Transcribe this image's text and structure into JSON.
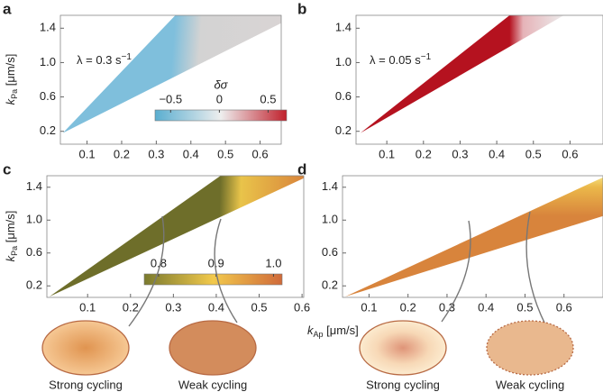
{
  "chart_data": [
    {
      "type": "area",
      "panel": "a",
      "region": {
        "x": [
          0.03,
          0.355,
          0.661,
          0.661
        ],
        "y": [
          0.18,
          1.55,
          1.55,
          1.46
        ]
      },
      "colors": [
        "#7fbfdc",
        "#d3d3d3",
        "#d9d4d4"
      ],
      "xlim": [
        0.023,
        0.661
      ],
      "ylim": [
        0.05,
        1.55
      ],
      "xticks": [
        0.1,
        0.2,
        0.3,
        0.4,
        0.5,
        0.6
      ],
      "yticks": [
        0.2,
        0.6,
        {
          "value": 1,
          "label": "1.0"
        },
        1.4
      ],
      "y_label": {
        "symbol": "k",
        "subscript": "Pa",
        "unit": " [μm/s]"
      },
      "annotation": {
        "text": "λ = 0.3 s",
        "superscript": "−1"
      },
      "colorbar": {
        "label": "δσ",
        "lim": [
          -0.66,
          0.69
        ],
        "colors": [
          "#5aaed0",
          "#eeeeee",
          "#c0202c"
        ],
        "ticks": [
          {
            "value": -0.5,
            "label": "−0.5"
          },
          0,
          0.5
        ]
      }
    },
    {
      "type": "area",
      "panel": "b",
      "region": {
        "x": [
          0.028,
          0.435,
          0.583
        ],
        "y": [
          0.18,
          1.55,
          1.55
        ]
      },
      "colors": [
        "#b5121f",
        "#e6b3b8",
        "#ececec"
      ],
      "xlim": [
        0.016,
        0.69
      ],
      "ylim": [
        0.05,
        1.55
      ],
      "xticks": [
        0.1,
        0.2,
        0.3,
        0.4,
        0.5,
        0.6
      ],
      "yticks": [
        0.2,
        0.6,
        {
          "value": 1,
          "label": "1.0"
        },
        1.4
      ],
      "annotation": {
        "text": "λ = 0.05 s",
        "superscript": "−1"
      }
    },
    {
      "type": "area",
      "panel": "c",
      "region": {
        "x": [
          0.011,
          0.41,
          0.604,
          0.604
        ],
        "y": [
          0.07,
          1.54,
          1.54,
          1.51
        ]
      },
      "colors": [
        "#6e6e2a",
        "#e9c44a",
        "#d9853c"
      ],
      "xlim": [
        0.005,
        0.604
      ],
      "ylim": [
        0.06,
        1.54
      ],
      "xticks": [
        0.1,
        0.2,
        0.3,
        0.4,
        0.5,
        0.6
      ],
      "yticks": [
        0.2,
        0.6,
        {
          "value": 1,
          "label": "1.0"
        },
        1.4
      ],
      "y_label": {
        "symbol": "k",
        "subscript": "Pa",
        "unit": " [μm/s]"
      },
      "x_label": {
        "symbol": "k",
        "subscript": "Ap",
        "unit": " [μm/s]"
      },
      "colorbar": {
        "lim": [
          0.775,
          1.015
        ],
        "colors": [
          "#7a7a2e",
          "#f2c94c",
          "#d06a3a"
        ],
        "ticks": [
          0.8,
          0.9,
          {
            "value": 1,
            "label": "1.0"
          }
        ]
      },
      "cartoons": [
        {
          "label": "Strong cycling"
        },
        {
          "label": "Weak cycling"
        }
      ]
    },
    {
      "type": "area",
      "panel": "d",
      "region": {
        "x": [
          0.039,
          0.7,
          0.7
        ],
        "y": [
          0.07,
          1.52,
          1.05
        ]
      },
      "colors": [
        "#f4dc7a",
        "#ebb84a",
        "#d8843c"
      ],
      "xlim": [
        0.032,
        0.7
      ],
      "ylim": [
        0.06,
        1.54
      ],
      "xticks": [
        0.1,
        0.2,
        0.3,
        0.4,
        0.5,
        0.6
      ],
      "yticks": [
        0.2,
        0.6,
        {
          "value": 1,
          "label": "1.0"
        },
        1.4
      ],
      "cartoons": [
        {
          "label": "Strong cycling"
        },
        {
          "label": "Weak cycling"
        }
      ]
    }
  ]
}
